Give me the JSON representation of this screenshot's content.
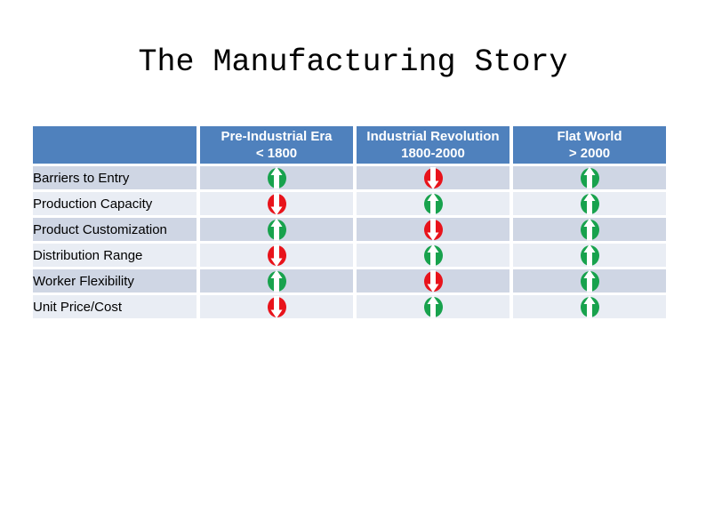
{
  "slide": {
    "title": "The Manufacturing Story"
  },
  "table": {
    "columns": [
      {
        "title": "Pre-Industrial Era",
        "subtitle": "< 1800"
      },
      {
        "title": "Industrial Revolution",
        "subtitle": "1800-2000"
      },
      {
        "title": "Flat World",
        "subtitle": "> 2000"
      }
    ],
    "rows": [
      {
        "label": "Barriers to Entry",
        "cells": [
          "up",
          "down",
          "up"
        ]
      },
      {
        "label": "Production Capacity",
        "cells": [
          "down",
          "up",
          "up"
        ]
      },
      {
        "label": "Product Customization",
        "cells": [
          "up",
          "down",
          "up"
        ]
      },
      {
        "label": "Distribution Range",
        "cells": [
          "down",
          "up",
          "up"
        ]
      },
      {
        "label": "Worker Flexibility",
        "cells": [
          "up",
          "down",
          "up"
        ]
      },
      {
        "label": "Unit Price/Cost",
        "cells": [
          "down",
          "up",
          "up"
        ]
      }
    ]
  },
  "colors": {
    "header_bg": "#4F81BD",
    "band_dark": "#CFD6E4",
    "band_light": "#E9EDF4",
    "arrow_up": "#18A24D",
    "arrow_down": "#E8131B",
    "header_text": "#FFFFFF",
    "title_text": "#000000"
  }
}
